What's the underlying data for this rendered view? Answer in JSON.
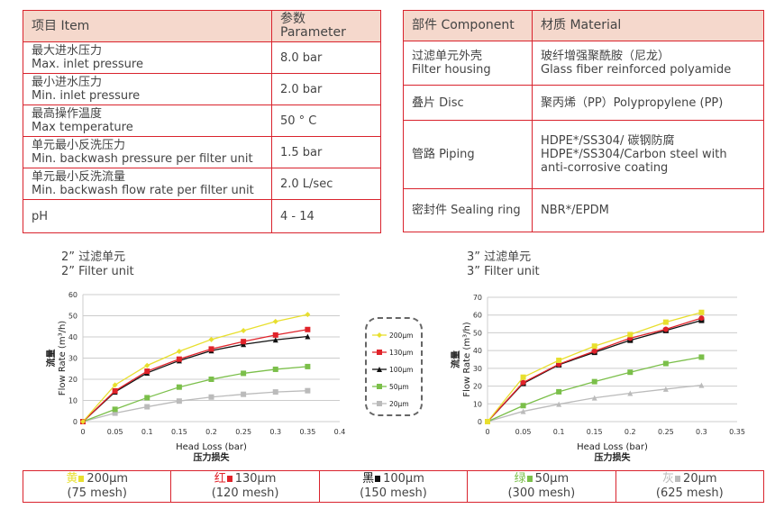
{
  "spec_table": {
    "headers": [
      "项目 Item",
      "参数 Parameter"
    ],
    "rows": [
      {
        "zh": "最大进水压力",
        "en": "Max. inlet pressure",
        "value": "8.0 bar"
      },
      {
        "zh": "最小进水压力",
        "en": "Min. inlet pressure",
        "value": "2.0 bar"
      },
      {
        "zh": "最高操作温度",
        "en": "Max temperature",
        "value": "50 ° C"
      },
      {
        "zh": "单元最小反洗压力",
        "en": "Min. backwash pressure per filter unit",
        "value": "1.5 bar"
      },
      {
        "zh": "单元最小反洗流量",
        "en": "Min. backwash flow rate per filter unit",
        "value": "2.0 L/sec"
      },
      {
        "zh": "pH",
        "en": "",
        "value": "4 - 14"
      }
    ]
  },
  "material_table": {
    "headers": [
      "部件 Component",
      "材质 Material"
    ],
    "rows": [
      {
        "component": "过滤单元外壳\nFilter housing",
        "material": "玻纤增强聚酰胺（尼龙）\nGlass fiber reinforced polyamide"
      },
      {
        "component": "叠片 Disc",
        "material": "聚丙烯（PP）Polypropylene (PP)"
      },
      {
        "component": "管路 Piping",
        "material": "HDPE*/SS304/ 碳钢防腐\nHDPE*/SS304/Carbon steel with anti-corrosive coating"
      },
      {
        "component": "密封件 Sealing ring",
        "material": "NBR*/EPDM"
      }
    ]
  },
  "colors": {
    "200": "#e8df2e",
    "130": "#e0232a",
    "100": "#111111",
    "50": "#7bbf4a",
    "20": "#bbbbbb",
    "border": "#d9232d",
    "header_bg": "#f5d8cc"
  },
  "legend": [
    "200μm",
    "130μm",
    "100μm",
    "50μm",
    "20μm"
  ],
  "chart_data": [
    {
      "type": "line",
      "title_zh": "2”  过滤单元",
      "title_en": "2”  Filter unit",
      "xlabel": "Head Loss (bar)",
      "xlabel_zh": "压力损失",
      "ylabel": "Flow Rate (m³/h)",
      "ylabel_zh": "流量",
      "xlim": [
        0,
        0.4
      ],
      "ylim": [
        0,
        60
      ],
      "xticks": [
        0,
        0.05,
        0.1,
        0.15,
        0.2,
        0.25,
        0.3,
        0.35,
        0.4
      ],
      "yticks": [
        0,
        10,
        20,
        30,
        40,
        50,
        60
      ],
      "grid": true,
      "x": [
        0,
        0.05,
        0.1,
        0.15,
        0.2,
        0.25,
        0.3,
        0.35
      ],
      "series": [
        {
          "name": "200μm",
          "marker": "diamond",
          "values": [
            0,
            17.3,
            26.5,
            33.2,
            38.8,
            43,
            47.3,
            50.6
          ]
        },
        {
          "name": "130μm",
          "marker": "square",
          "values": [
            0,
            14.5,
            23.8,
            29.5,
            34.3,
            37.8,
            40.9,
            43.5
          ]
        },
        {
          "name": "100μm",
          "marker": "triangle",
          "values": [
            0,
            14,
            23,
            28.8,
            33.5,
            36.5,
            38.6,
            40.2
          ]
        },
        {
          "name": "50μm",
          "marker": "square",
          "values": [
            0,
            5.8,
            11.3,
            16.3,
            20,
            22.8,
            24.7,
            26
          ]
        },
        {
          "name": "20μm",
          "marker": "square",
          "values": [
            0,
            4,
            7,
            9.7,
            11.6,
            12.9,
            14,
            14.6
          ]
        }
      ]
    },
    {
      "type": "line",
      "title_zh": "3”  过滤单元",
      "title_en": "3”  Filter unit",
      "xlabel": "Head Loss (bar)",
      "xlabel_zh": "压力损失",
      "ylabel": "Flow Rate (m³/h)",
      "ylabel_zh": "流量",
      "xlim": [
        0,
        0.35
      ],
      "ylim": [
        0,
        70
      ],
      "xticks": [
        0,
        0.05,
        0.1,
        0.15,
        0.2,
        0.25,
        0.3,
        0.35
      ],
      "yticks": [
        0,
        10,
        20,
        30,
        40,
        50,
        60,
        70
      ],
      "grid": true,
      "x": [
        0,
        0.05,
        0.1,
        0.15,
        0.2,
        0.25,
        0.3
      ],
      "series": [
        {
          "name": "200μm",
          "marker": "square",
          "values": [
            0,
            25,
            34.5,
            42.5,
            49,
            56,
            61.5
          ]
        },
        {
          "name": "130μm",
          "marker": "circle",
          "values": [
            0,
            22,
            32.3,
            39.7,
            47,
            52,
            58.3
          ]
        },
        {
          "name": "100μm",
          "marker": "square",
          "values": [
            0,
            21.5,
            32,
            39,
            45.8,
            51.3,
            57
          ]
        },
        {
          "name": "50μm",
          "marker": "square",
          "values": [
            0,
            9,
            16.8,
            22.5,
            27.8,
            32.7,
            36.3
          ]
        },
        {
          "name": "20μm",
          "marker": "triangle",
          "values": [
            0,
            5.8,
            9.8,
            13.4,
            16,
            18.3,
            20.5
          ]
        }
      ]
    }
  ],
  "mesh_legend": [
    {
      "color_zh": "黄",
      "size": "200μm",
      "mesh": "(75 mesh)",
      "key": "200"
    },
    {
      "color_zh": "红",
      "size": "130μm",
      "mesh": "(120 mesh)",
      "key": "130"
    },
    {
      "color_zh": "黑",
      "size": "100μm",
      "mesh": "(150 mesh)",
      "key": "100"
    },
    {
      "color_zh": "绿",
      "size": "50μm",
      "mesh": "(300 mesh)",
      "key": "50"
    },
    {
      "color_zh": "灰",
      "size": "20μm",
      "mesh": "(625 mesh)",
      "key": "20"
    }
  ]
}
